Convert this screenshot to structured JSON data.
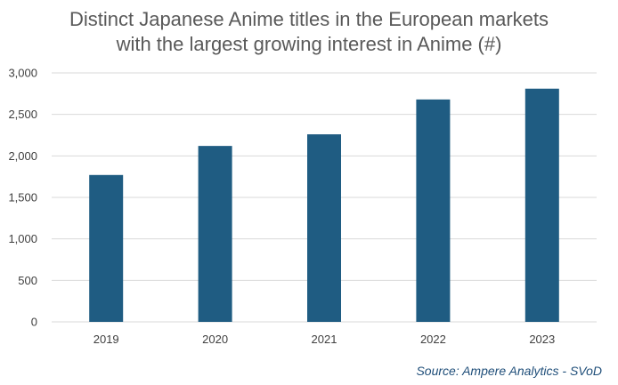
{
  "chart_data": {
    "type": "bar",
    "title_lines": [
      "Distinct Japanese Anime titles in the European markets",
      "with the largest growing interest in Anime (#)"
    ],
    "categories": [
      "2019",
      "2020",
      "2021",
      "2022",
      "2023"
    ],
    "values": [
      1770,
      2120,
      2260,
      2680,
      2810
    ],
    "ylim": [
      0,
      3000
    ],
    "yticks": [
      0,
      500,
      1000,
      1500,
      2000,
      2500,
      3000
    ],
    "ytick_labels": [
      "0",
      "500",
      "1,000",
      "1,500",
      "2,000",
      "2,500",
      "3,000"
    ],
    "xlabel": "",
    "ylabel": "",
    "grid": true,
    "legend": "none",
    "bar_color": "#1f5c82",
    "grid_color": "#d9d9d9"
  },
  "source": "Source: Ampere Analytics - SVoD"
}
